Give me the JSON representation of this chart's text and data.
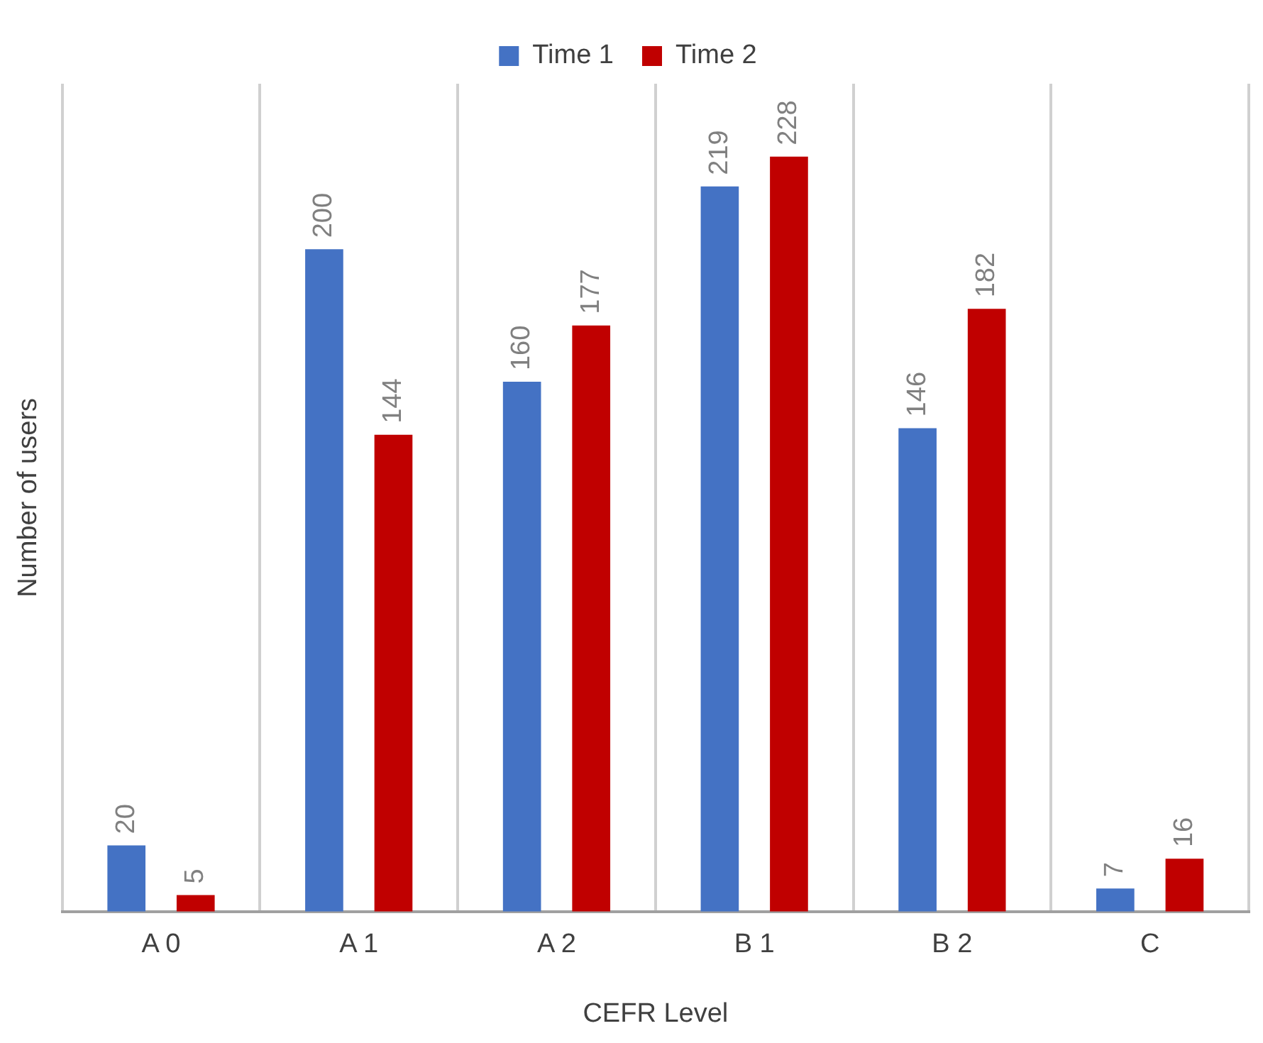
{
  "chart_data": {
    "type": "bar",
    "xlabel": "CEFR Level",
    "ylabel": "Number of users",
    "categories": [
      "A 0",
      "A 1",
      "A 2",
      "B 1",
      "B 2",
      "C"
    ],
    "series": [
      {
        "name": "Time 1",
        "color": "#4472c4",
        "values": [
          20,
          200,
          160,
          219,
          146,
          7
        ]
      },
      {
        "name": "Time 2",
        "color": "#c00000",
        "values": [
          5,
          144,
          177,
          228,
          182,
          16
        ]
      }
    ],
    "data_labels": true,
    "grid": "x",
    "legend": "top"
  }
}
